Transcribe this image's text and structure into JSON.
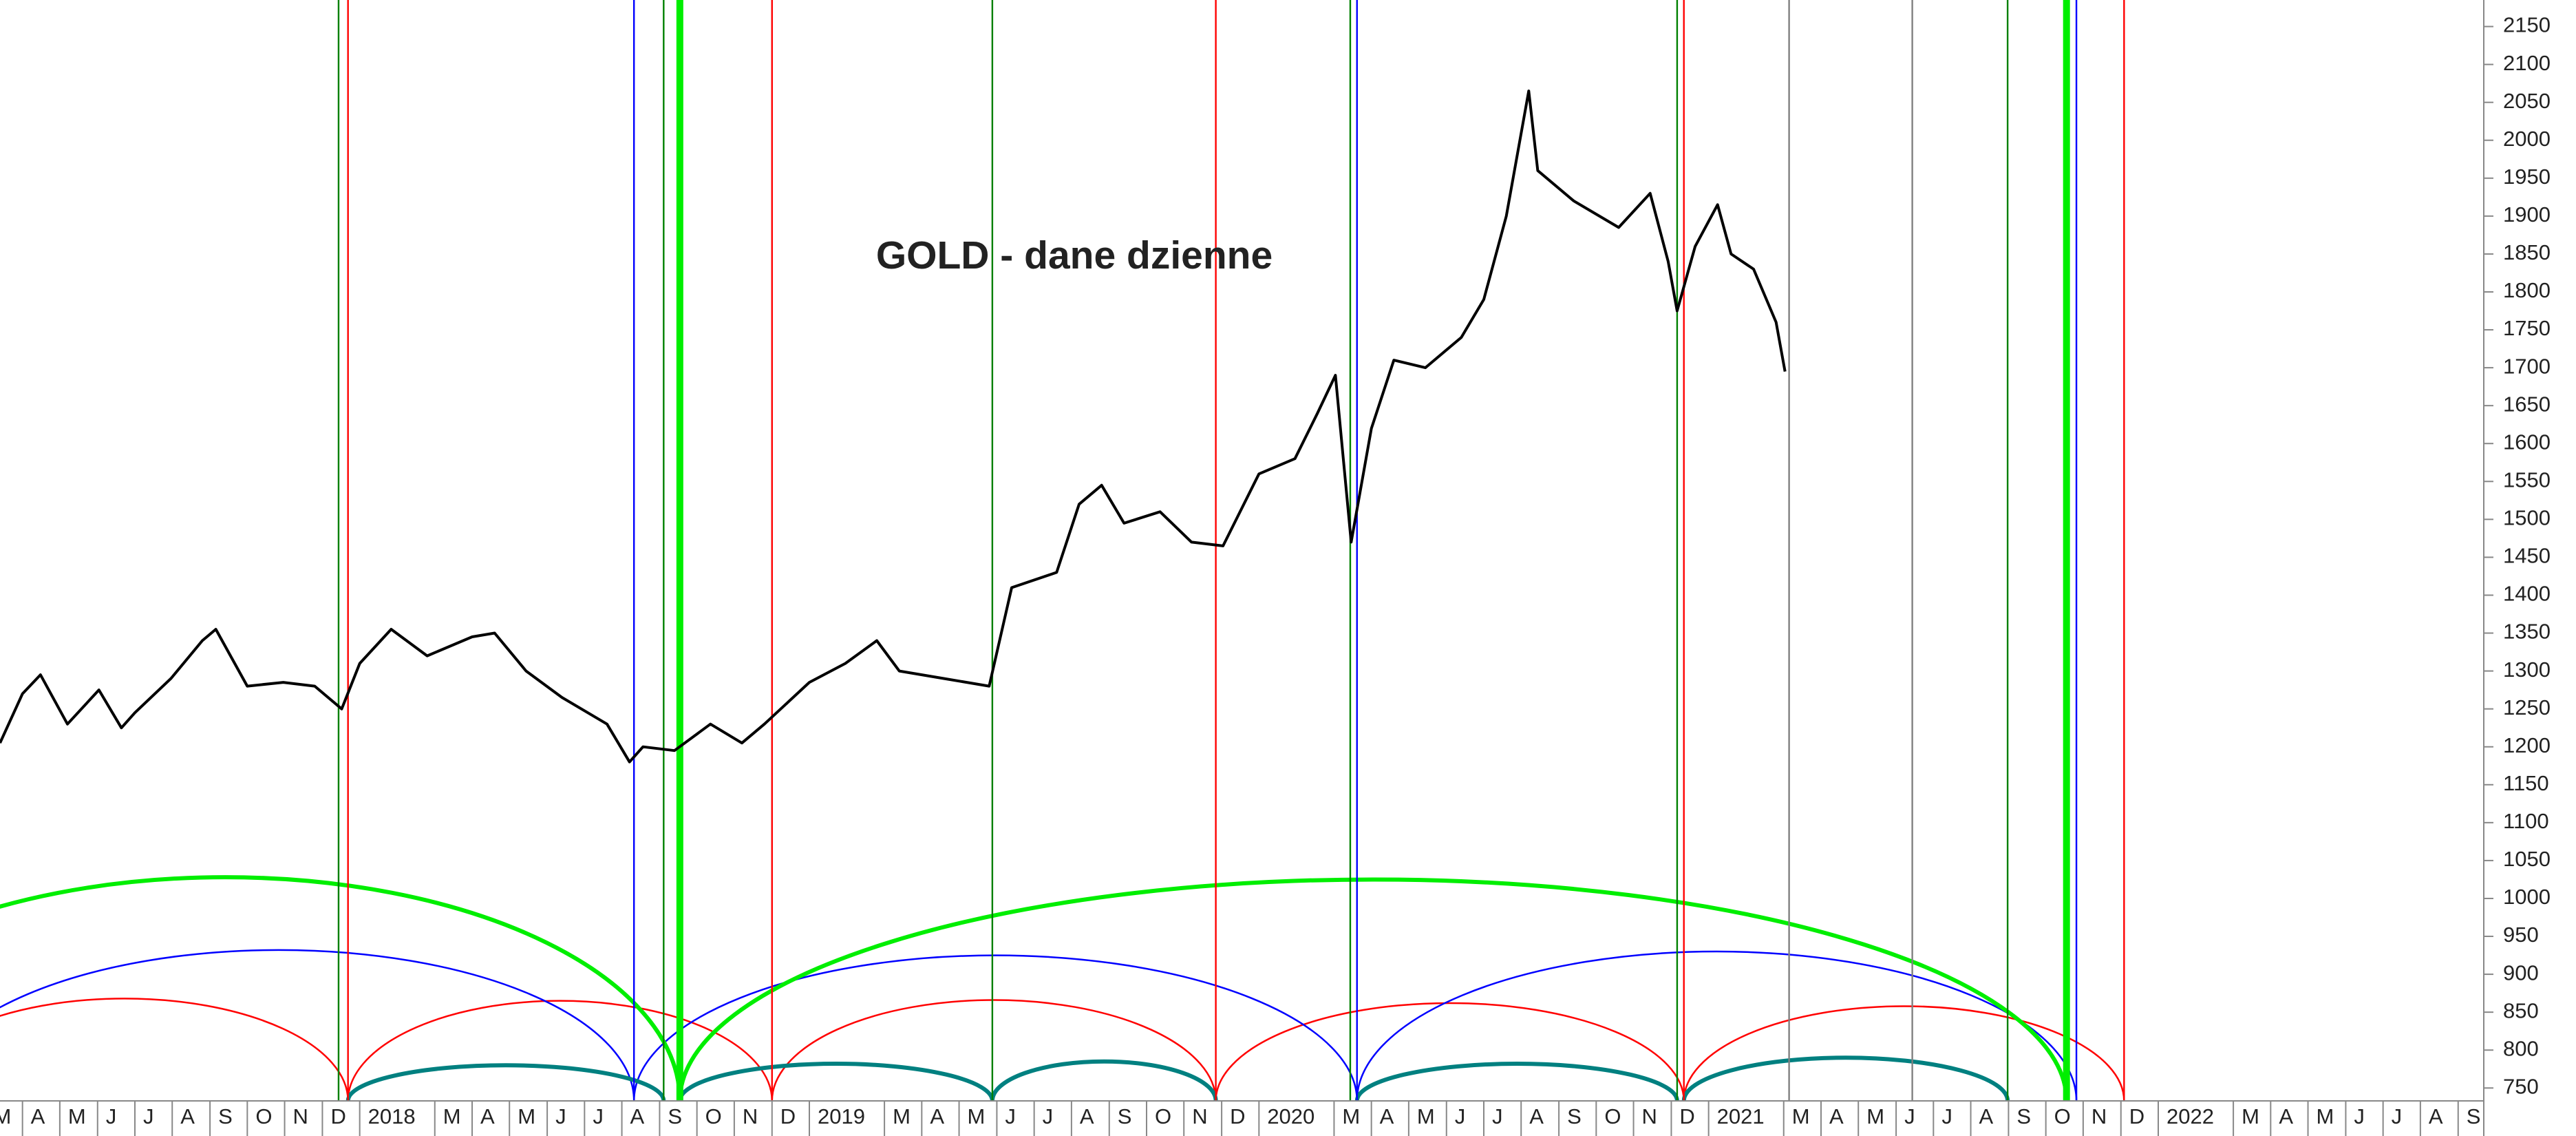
{
  "chart_data": {
    "type": "line",
    "title": "GOLD - dane dzienne",
    "title_color": "#808000",
    "series": [
      {
        "color": "#000000",
        "x": [
          2017.2,
          2017.25,
          2017.29,
          2017.35,
          2017.42,
          2017.47,
          2017.5,
          2017.58,
          2017.65,
          2017.68,
          2017.75,
          2017.83,
          2017.9,
          2017.96,
          2018.0,
          2018.07,
          2018.15,
          2018.25,
          2018.3,
          2018.37,
          2018.45,
          2018.55,
          2018.6,
          2018.63,
          2018.7,
          2018.78,
          2018.85,
          2018.9,
          2019.0,
          2019.08,
          2019.15,
          2019.2,
          2019.3,
          2019.4,
          2019.45,
          2019.55,
          2019.6,
          2019.65,
          2019.7,
          2019.78,
          2019.85,
          2019.92,
          2020.0,
          2020.08,
          2020.13,
          2020.17,
          2020.205,
          2020.25,
          2020.3,
          2020.37,
          2020.45,
          2020.5,
          2020.55,
          2020.6,
          2020.62,
          2020.7,
          2020.8,
          2020.87,
          2020.91,
          2020.93,
          2020.97,
          2021.02,
          2021.05,
          2021.1,
          2021.15,
          2021.17
        ],
        "values": [
          1205,
          1270,
          1295,
          1230,
          1275,
          1225,
          1245,
          1290,
          1340,
          1355,
          1280,
          1285,
          1280,
          1250,
          1310,
          1355,
          1320,
          1345,
          1350,
          1300,
          1265,
          1230,
          1180,
          1200,
          1195,
          1230,
          1205,
          1230,
          1285,
          1310,
          1340,
          1300,
          1290,
          1280,
          1410,
          1430,
          1520,
          1545,
          1495,
          1510,
          1470,
          1465,
          1560,
          1580,
          1640,
          1690,
          1470,
          1620,
          1710,
          1700,
          1740,
          1790,
          1900,
          2065,
          1960,
          1920,
          1885,
          1930,
          1840,
          1775,
          1860,
          1915,
          1850,
          1830,
          1760,
          1695
        ]
      }
    ],
    "cycle_lines": [
      {
        "x": 2017.953,
        "color": "#008000"
      },
      {
        "x": 2017.974,
        "color": "#ff0000"
      },
      {
        "x": 2018.61,
        "color": "#0000ff"
      },
      {
        "x": 2018.676,
        "color": "#008000"
      },
      {
        "x": 2018.712,
        "color": "#00ee00",
        "thick": true
      },
      {
        "x": 2018.917,
        "color": "#ff0000"
      },
      {
        "x": 2019.407,
        "color": "#008000"
      },
      {
        "x": 2019.904,
        "color": "#ff0000"
      },
      {
        "x": 2020.203,
        "color": "#008000"
      },
      {
        "x": 2020.218,
        "color": "#0000ff"
      },
      {
        "x": 2020.93,
        "color": "#008000"
      },
      {
        "x": 2020.945,
        "color": "#ff0000"
      },
      {
        "x": 2021.179,
        "color": "#808080"
      },
      {
        "x": 2021.453,
        "color": "#808080"
      },
      {
        "x": 2021.665,
        "color": "#008000"
      },
      {
        "x": 2021.796,
        "color": "#00ee00",
        "thick": true
      },
      {
        "x": 2021.818,
        "color": "#0000ff"
      },
      {
        "x": 2021.924,
        "color": "#ff0000"
      }
    ],
    "cycle_arcs": [
      {
        "start": 2016.98,
        "end": 2017.974,
        "peak": 868,
        "color": "#ff0000"
      },
      {
        "start": 2017.974,
        "end": 2018.917,
        "peak": 865,
        "color": "#ff0000"
      },
      {
        "start": 2018.917,
        "end": 2019.904,
        "peak": 866,
        "color": "#ff0000"
      },
      {
        "start": 2019.904,
        "end": 2020.945,
        "peak": 862,
        "color": "#ff0000"
      },
      {
        "start": 2020.945,
        "end": 2021.924,
        "peak": 858,
        "color": "#ff0000"
      },
      {
        "start": 2017.03,
        "end": 2018.61,
        "peak": 932,
        "color": "#0000ff"
      },
      {
        "start": 2018.61,
        "end": 2020.218,
        "peak": 925,
        "color": "#0000ff"
      },
      {
        "start": 2020.218,
        "end": 2021.818,
        "peak": 930,
        "color": "#0000ff"
      },
      {
        "start": 2016.69,
        "end": 2018.712,
        "peak": 1028,
        "color": "#00ee00",
        "thick": true
      },
      {
        "start": 2018.712,
        "end": 2021.796,
        "peak": 1025,
        "color": "#00ee00",
        "thick": true
      },
      {
        "start": 2017.974,
        "end": 2018.676,
        "peak": 780,
        "color": "#008080",
        "thick": true
      },
      {
        "start": 2018.712,
        "end": 2019.407,
        "peak": 782,
        "color": "#008080",
        "thick": true
      },
      {
        "start": 2019.407,
        "end": 2019.904,
        "peak": 785,
        "color": "#008080",
        "thick": true
      },
      {
        "start": 2020.218,
        "end": 2020.93,
        "peak": 782,
        "color": "#008080",
        "thick": true
      },
      {
        "start": 2020.945,
        "end": 2021.665,
        "peak": 790,
        "color": "#008080",
        "thick": true
      }
    ],
    "xlim": [
      2017.2,
      2022.724
    ],
    "xticks": [
      {
        "value": 2017.167,
        "label": "M"
      },
      {
        "value": 2017.25,
        "label": "A"
      },
      {
        "value": 2017.333,
        "label": "M"
      },
      {
        "value": 2017.417,
        "label": "J"
      },
      {
        "value": 2017.5,
        "label": "J"
      },
      {
        "value": 2017.583,
        "label": "A"
      },
      {
        "value": 2017.667,
        "label": "S"
      },
      {
        "value": 2017.75,
        "label": "O"
      },
      {
        "value": 2017.833,
        "label": "N"
      },
      {
        "value": 2017.917,
        "label": "D"
      },
      2018,
      {
        "value": 2018.167,
        "label": "M"
      },
      {
        "value": 2018.25,
        "label": "A"
      },
      {
        "value": 2018.333,
        "label": "M"
      },
      {
        "value": 2018.417,
        "label": "J"
      },
      {
        "value": 2018.5,
        "label": "J"
      },
      {
        "value": 2018.583,
        "label": "A"
      },
      {
        "value": 2018.667,
        "label": "S"
      },
      {
        "value": 2018.75,
        "label": "O"
      },
      {
        "value": 2018.833,
        "label": "N"
      },
      {
        "value": 2018.917,
        "label": "D"
      },
      2019,
      {
        "value": 2019.167,
        "label": "M"
      },
      {
        "value": 2019.25,
        "label": "A"
      },
      {
        "value": 2019.333,
        "label": "M"
      },
      {
        "value": 2019.417,
        "label": "J"
      },
      {
        "value": 2019.5,
        "label": "J"
      },
      {
        "value": 2019.583,
        "label": "A"
      },
      {
        "value": 2019.667,
        "label": "S"
      },
      {
        "value": 2019.75,
        "label": "O"
      },
      {
        "value": 2019.833,
        "label": "N"
      },
      {
        "value": 2019.917,
        "label": "D"
      },
      2020,
      {
        "value": 2020.167,
        "label": "M"
      },
      {
        "value": 2020.25,
        "label": "A"
      },
      {
        "value": 2020.333,
        "label": "M"
      },
      {
        "value": 2020.417,
        "label": "J"
      },
      {
        "value": 2020.5,
        "label": "J"
      },
      {
        "value": 2020.583,
        "label": "A"
      },
      {
        "value": 2020.667,
        "label": "S"
      },
      {
        "value": 2020.75,
        "label": "O"
      },
      {
        "value": 2020.833,
        "label": "N"
      },
      {
        "value": 2020.917,
        "label": "D"
      },
      2021,
      {
        "value": 2021.167,
        "label": "M"
      },
      {
        "value": 2021.25,
        "label": "A"
      },
      {
        "value": 2021.333,
        "label": "M"
      },
      {
        "value": 2021.417,
        "label": "J"
      },
      {
        "value": 2021.5,
        "label": "J"
      },
      {
        "value": 2021.583,
        "label": "A"
      },
      {
        "value": 2021.667,
        "label": "S"
      },
      {
        "value": 2021.75,
        "label": "O"
      },
      {
        "value": 2021.833,
        "label": "N"
      },
      {
        "value": 2021.917,
        "label": "D"
      },
      2022,
      {
        "value": 2022.167,
        "label": "M"
      },
      {
        "value": 2022.25,
        "label": "A"
      },
      {
        "value": 2022.333,
        "label": "M"
      },
      {
        "value": 2022.417,
        "label": "J"
      },
      {
        "value": 2022.5,
        "label": "J"
      },
      {
        "value": 2022.583,
        "label": "A"
      },
      {
        "value": 2022.667,
        "label": "S"
      }
    ],
    "ylim": [
      733,
      2185
    ],
    "yticks": [
      750,
      800,
      850,
      900,
      950,
      1000,
      1050,
      1100,
      1150,
      1200,
      1250,
      1300,
      1350,
      1400,
      1450,
      1500,
      1550,
      1600,
      1650,
      1700,
      1750,
      1800,
      1850,
      1900,
      1950,
      2000,
      2050,
      2100,
      2150
    ]
  }
}
